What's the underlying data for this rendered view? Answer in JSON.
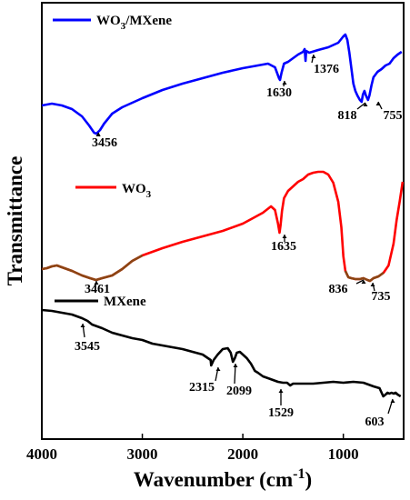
{
  "chart_data": {
    "type": "line",
    "xlabel": "Wavenumber (cm",
    "xlabel_sup": "-1",
    "xlabel_close": ")",
    "ylabel": "Transmittance",
    "xlim": [
      4000,
      400
    ],
    "x_ticks": [
      4000,
      3000,
      2000,
      1000
    ],
    "x_tick_labels": [
      "4000",
      "3000",
      "2000",
      "1000"
    ],
    "y_ticks": "none",
    "grid": false,
    "legend_placement": "inline above each curve",
    "series": [
      {
        "name_main": "WO",
        "name_sub": "3",
        "name_rest": "/MXene",
        "color": "#0000ff",
        "points": [
          [
            4000,
            116
          ],
          [
            3900,
            114
          ],
          [
            3800,
            116
          ],
          [
            3700,
            120
          ],
          [
            3600,
            128
          ],
          [
            3530,
            138
          ],
          [
            3480,
            146
          ],
          [
            3456,
            147
          ],
          [
            3420,
            143
          ],
          [
            3380,
            136
          ],
          [
            3300,
            125
          ],
          [
            3200,
            118
          ],
          [
            3000,
            108
          ],
          [
            2800,
            99
          ],
          [
            2600,
            92
          ],
          [
            2400,
            86
          ],
          [
            2200,
            80
          ],
          [
            2000,
            75
          ],
          [
            1850,
            72
          ],
          [
            1750,
            70
          ],
          [
            1680,
            74
          ],
          [
            1640,
            86
          ],
          [
            1630,
            88
          ],
          [
            1615,
            80
          ],
          [
            1590,
            70
          ],
          [
            1550,
            68
          ],
          [
            1450,
            60
          ],
          [
            1400,
            57
          ],
          [
            1385,
            54
          ],
          [
            1376,
            67
          ],
          [
            1370,
            56
          ],
          [
            1340,
            58
          ],
          [
            1250,
            55
          ],
          [
            1150,
            52
          ],
          [
            1050,
            47
          ],
          [
            1000,
            40
          ],
          [
            980,
            38
          ],
          [
            960,
            44
          ],
          [
            940,
            58
          ],
          [
            920,
            75
          ],
          [
            900,
            92
          ],
          [
            880,
            100
          ],
          [
            860,
            105
          ],
          [
            835,
            110
          ],
          [
            818,
            112
          ],
          [
            805,
            104
          ],
          [
            790,
            100
          ],
          [
            775,
            105
          ],
          [
            755,
            110
          ],
          [
            740,
            105
          ],
          [
            720,
            94
          ],
          [
            700,
            85
          ],
          [
            660,
            79
          ],
          [
            620,
            76
          ],
          [
            580,
            72
          ],
          [
            540,
            70
          ],
          [
            500,
            64
          ],
          [
            460,
            60
          ],
          [
            420,
            57
          ]
        ]
      },
      {
        "name_main": "WO",
        "name_sub": "3",
        "name_rest": "",
        "color": "#ff0000",
        "wide_band_color": "#8b4513",
        "points": [
          [
            4000,
            296
          ],
          [
            3950,
            295
          ],
          [
            3900,
            293
          ],
          [
            3850,
            292
          ],
          [
            3800,
            294
          ],
          [
            3700,
            298
          ],
          [
            3600,
            303
          ],
          [
            3520,
            306
          ],
          [
            3461,
            308
          ],
          [
            3400,
            306
          ],
          [
            3300,
            303
          ],
          [
            3200,
            296
          ],
          [
            3100,
            287
          ],
          [
            3000,
            281
          ],
          [
            2800,
            273
          ],
          [
            2600,
            266
          ],
          [
            2400,
            260
          ],
          [
            2200,
            254
          ],
          [
            2000,
            246
          ],
          [
            1900,
            240
          ],
          [
            1800,
            234
          ],
          [
            1720,
            227
          ],
          [
            1680,
            231
          ],
          [
            1650,
            246
          ],
          [
            1635,
            256
          ],
          [
            1625,
            248
          ],
          [
            1610,
            232
          ],
          [
            1590,
            218
          ],
          [
            1550,
            210
          ],
          [
            1500,
            205
          ],
          [
            1450,
            200
          ],
          [
            1400,
            197
          ],
          [
            1350,
            192
          ],
          [
            1300,
            190
          ],
          [
            1250,
            189
          ],
          [
            1200,
            189
          ],
          [
            1150,
            192
          ],
          [
            1100,
            201
          ],
          [
            1050,
            222
          ],
          [
            1020,
            250
          ],
          [
            1000,
            282
          ],
          [
            980,
            298
          ],
          [
            950,
            305
          ],
          [
            920,
            306
          ],
          [
            880,
            307
          ],
          [
            836,
            307
          ],
          [
            800,
            306
          ],
          [
            760,
            308
          ],
          [
            735,
            309
          ],
          [
            700,
            306
          ],
          [
            650,
            304
          ],
          [
            600,
            300
          ],
          [
            550,
            292
          ],
          [
            500,
            268
          ],
          [
            470,
            242
          ],
          [
            440,
            222
          ],
          [
            410,
            200
          ]
        ]
      },
      {
        "name_main": "MXene",
        "name_sub": "",
        "name_rest": "",
        "color": "#000000",
        "points": [
          [
            4000,
            341
          ],
          [
            3900,
            342
          ],
          [
            3800,
            344
          ],
          [
            3700,
            346
          ],
          [
            3600,
            350
          ],
          [
            3545,
            353
          ],
          [
            3500,
            357
          ],
          [
            3400,
            361
          ],
          [
            3300,
            366
          ],
          [
            3200,
            369
          ],
          [
            3100,
            372
          ],
          [
            3000,
            374
          ],
          [
            2900,
            378
          ],
          [
            2800,
            380
          ],
          [
            2700,
            382
          ],
          [
            2600,
            384
          ],
          [
            2500,
            387
          ],
          [
            2400,
            390
          ],
          [
            2320,
            396
          ],
          [
            2315,
            402
          ],
          [
            2290,
            396
          ],
          [
            2250,
            390
          ],
          [
            2200,
            384
          ],
          [
            2150,
            383
          ],
          [
            2120,
            388
          ],
          [
            2099,
            398
          ],
          [
            2080,
            394
          ],
          [
            2060,
            388
          ],
          [
            2030,
            387
          ],
          [
            2000,
            390
          ],
          [
            1960,
            394
          ],
          [
            1920,
            400
          ],
          [
            1880,
            408
          ],
          [
            1850,
            410
          ],
          [
            1800,
            414
          ],
          [
            1750,
            416
          ],
          [
            1700,
            418
          ],
          [
            1650,
            420
          ],
          [
            1600,
            421
          ],
          [
            1560,
            421
          ],
          [
            1529,
            424
          ],
          [
            1500,
            422
          ],
          [
            1400,
            422
          ],
          [
            1300,
            422
          ],
          [
            1200,
            421
          ],
          [
            1100,
            420
          ],
          [
            1000,
            421
          ],
          [
            900,
            420
          ],
          [
            800,
            421
          ],
          [
            700,
            425
          ],
          [
            640,
            427
          ],
          [
            603,
            436
          ],
          [
            580,
            434
          ],
          [
            560,
            432
          ],
          [
            540,
            433
          ],
          [
            520,
            432
          ],
          [
            500,
            433
          ],
          [
            480,
            432
          ],
          [
            460,
            434
          ],
          [
            430,
            436
          ]
        ]
      }
    ],
    "annotations": [
      {
        "label": "3456",
        "x": 3456
      },
      {
        "label": "1630",
        "x": 1630
      },
      {
        "label": "1376",
        "x": 1376
      },
      {
        "label": "818",
        "x": 818
      },
      {
        "label": "755",
        "x": 755
      },
      {
        "label": "3461",
        "x": 3461
      },
      {
        "label": "1635",
        "x": 1635
      },
      {
        "label": "836",
        "x": 836
      },
      {
        "label": "735",
        "x": 735
      },
      {
        "label": "3545",
        "x": 3545
      },
      {
        "label": "2315",
        "x": 2315
      },
      {
        "label": "2099",
        "x": 2099
      },
      {
        "label": "1529",
        "x": 1529
      },
      {
        "label": "603",
        "x": 603
      }
    ]
  }
}
